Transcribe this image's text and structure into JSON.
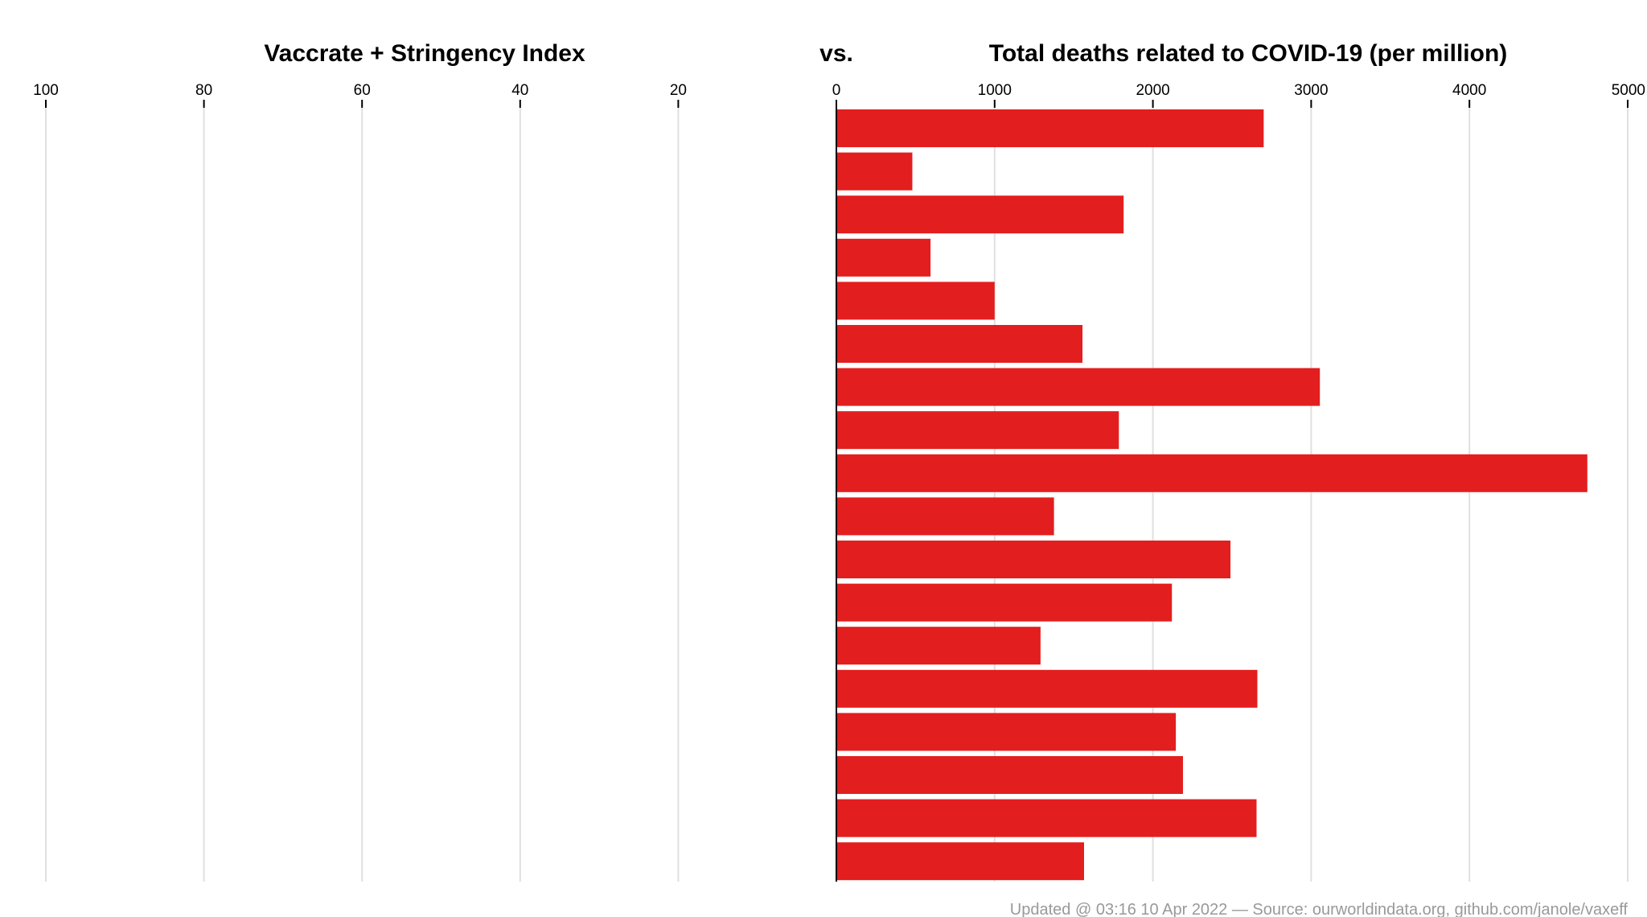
{
  "chart_data": [
    {
      "type": "bar",
      "orientation": "horizontal",
      "direction": "leftward",
      "title": "Vaccrate + Stringency Index",
      "xlim": [
        0,
        100
      ],
      "ticks": [
        100,
        80,
        60,
        40,
        20
      ],
      "grid": true,
      "series": [
        {
          "values": []
        }
      ]
    },
    {
      "type": "bar",
      "orientation": "horizontal",
      "title": "Total deaths related to COVID-19 (per million)",
      "xlim": [
        0,
        5000
      ],
      "ticks": [
        0,
        1000,
        2000,
        3000,
        4000,
        5000
      ],
      "grid": true,
      "bar_color": "#e31e1e",
      "series": [
        {
          "values": [
            2700,
            480,
            1815,
            595,
            1000,
            1555,
            3055,
            1785,
            4745,
            1375,
            2490,
            2120,
            1290,
            2660,
            2145,
            2190,
            2655,
            1565
          ]
        }
      ]
    }
  ],
  "separator_label": "vs.",
  "footer": "Updated @ 03:16 10 Apr 2022 — Source: ourworldindata.org, github.com/janole/vaxeff"
}
